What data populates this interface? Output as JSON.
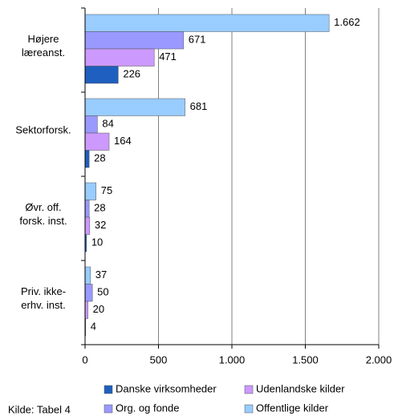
{
  "chart_data": {
    "type": "hbar",
    "categories": [
      "Højere læreanst.",
      "Sektorforsk.",
      "Øvr. off. forsk. inst.",
      "Priv. ikke-erhv. inst."
    ],
    "series": [
      {
        "name": "Offentlige kilder",
        "color": "#99ccff",
        "values": [
          1662,
          681,
          75,
          37
        ],
        "value_labels": [
          "1.662",
          "681",
          "75",
          "37"
        ]
      },
      {
        "name": "Org. og fonde",
        "color": "#9999ff",
        "values": [
          671,
          84,
          28,
          50
        ]
      },
      {
        "name": "Udenlandske kilder",
        "color": "#cc99ff",
        "values": [
          471,
          164,
          32,
          20
        ]
      },
      {
        "name": "Danske virksomheder",
        "color": "#1f5fbf",
        "values": [
          226,
          28,
          10,
          4
        ]
      }
    ],
    "legend_order": [
      "Danske virksomheder",
      "Udenlandske kilder",
      "Org. og fonde",
      "Offentlige kilder"
    ],
    "xlim": [
      0,
      2000
    ],
    "xticks": [
      0,
      500,
      {
        "value": 1000,
        "label": "1.000"
      },
      {
        "value": 1500,
        "label": "1.500"
      },
      {
        "value": 2000,
        "label": "2.000"
      }
    ],
    "grid": true,
    "annotation": "Kilde: Tabel 4"
  }
}
